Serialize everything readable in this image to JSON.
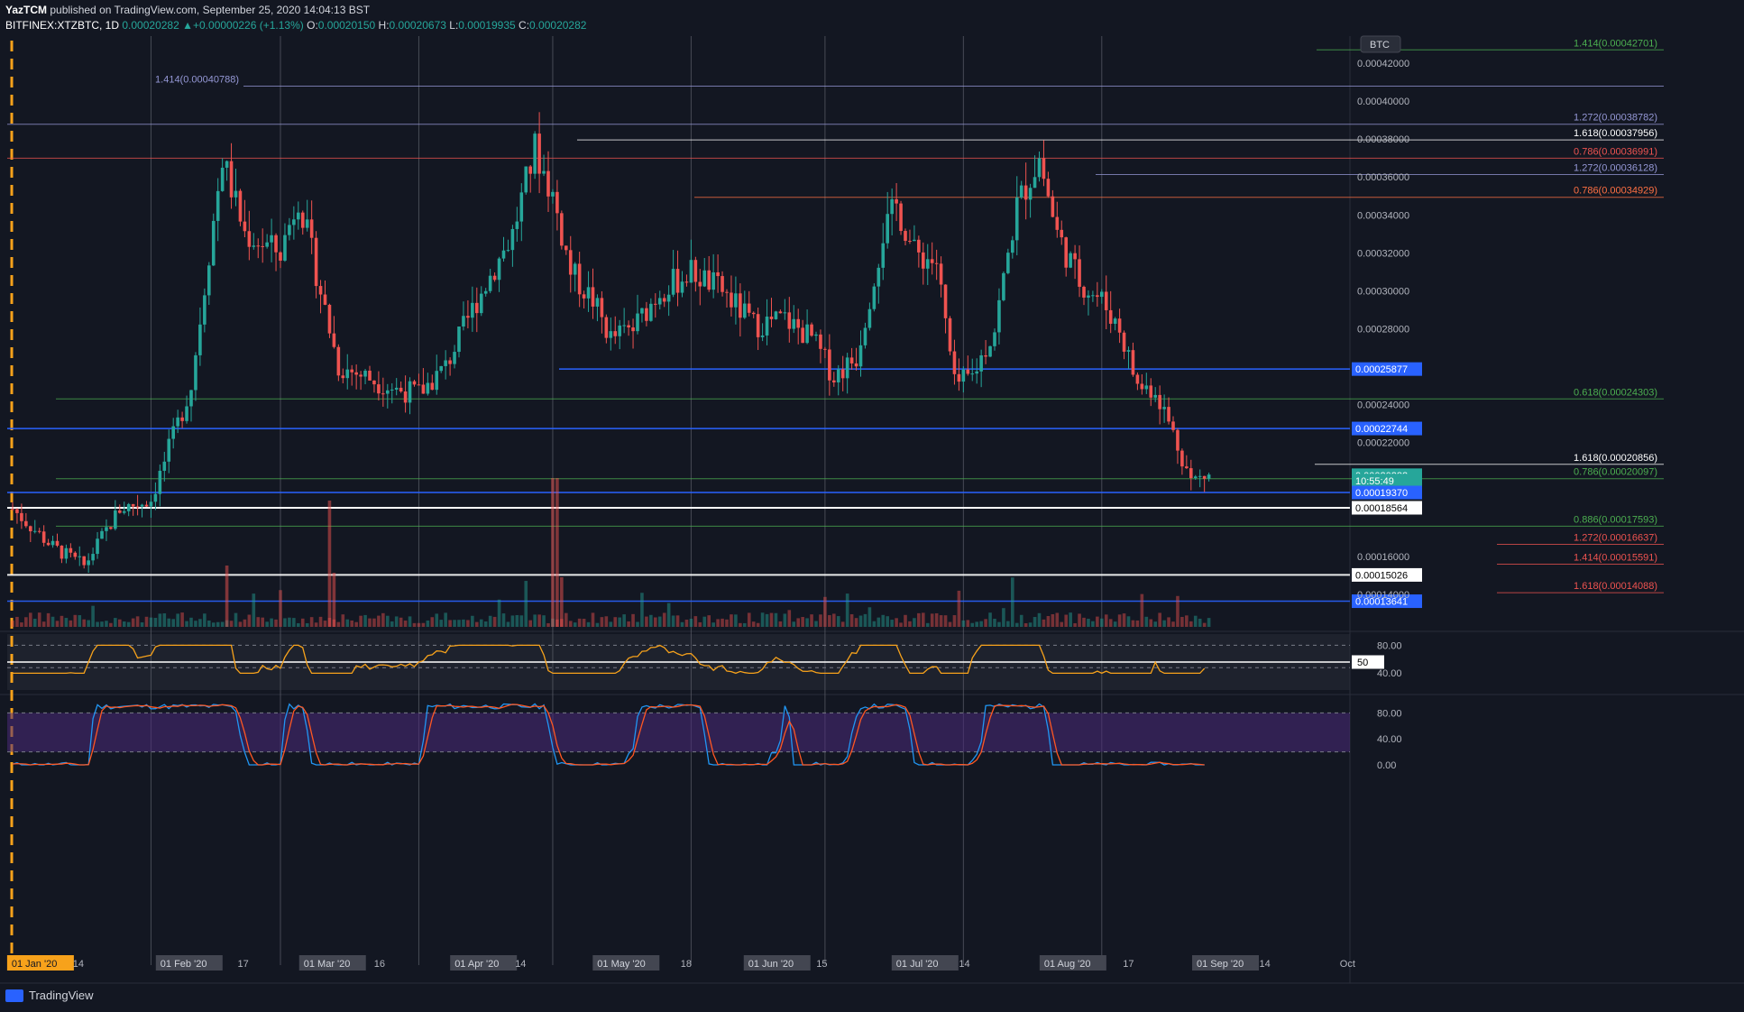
{
  "header": {
    "author": "YazTCM",
    "published_text": "published on TradingView.com, September 25, 2020 14:04:13 BST",
    "symbol": "BITFINEX:XTZBTC, 1D",
    "last": "0.00020282",
    "change": "+0.00000226 (+1.13%)",
    "open_label": "O:",
    "open": "0.00020150",
    "high_label": "H:",
    "high": "0.00020673",
    "low_label": "L:",
    "low": "0.00019935",
    "close_label": "C:",
    "close": "0.00020282"
  },
  "brand": {
    "label": "TradingView"
  },
  "colors": {
    "background": "#131722",
    "up": "#26a69a",
    "down": "#ef5350",
    "rsi_line": "#f7a21b",
    "stoch_k": "#2196f3",
    "stoch_d": "#ff5722",
    "stoch_band": "#4a2a7a"
  },
  "chart_data": {
    "type": "candlestick",
    "currency": "BTC",
    "price_axis_labels": [
      "0.00042000",
      "0.00040000",
      "0.00038000",
      "0.00036000",
      "0.00034000",
      "0.00032000",
      "0.00030000",
      "0.00028000",
      "0.00024000",
      "0.00022000",
      "0.00016000",
      "0.00014000"
    ],
    "x_axis_labels": [
      {
        "text": "01 Jan '20",
        "highlight": "orange"
      },
      {
        "text": "14",
        "highlight": "none"
      },
      {
        "text": "01 Feb '20",
        "highlight": "grey"
      },
      {
        "text": "17",
        "highlight": "none"
      },
      {
        "text": "01 Mar '20",
        "highlight": "grey"
      },
      {
        "text": "16",
        "highlight": "none"
      },
      {
        "text": "01 Apr '20",
        "highlight": "grey"
      },
      {
        "text": "14",
        "highlight": "none"
      },
      {
        "text": "01 May '20",
        "highlight": "grey"
      },
      {
        "text": "18",
        "highlight": "none"
      },
      {
        "text": "01 Jun '20",
        "highlight": "grey"
      },
      {
        "text": "15",
        "highlight": "none"
      },
      {
        "text": "01 Jul '20",
        "highlight": "grey"
      },
      {
        "text": "14",
        "highlight": "none"
      },
      {
        "text": "01 Aug '20",
        "highlight": "grey"
      },
      {
        "text": "17",
        "highlight": "none"
      },
      {
        "text": "01 Sep '20",
        "highlight": "grey"
      },
      {
        "text": "14",
        "highlight": "none"
      },
      {
        "text": "Oct",
        "highlight": "none"
      }
    ],
    "close_path": [
      [
        "2020-01-01",
        0.000185
      ],
      [
        "2020-01-10",
        0.000165
      ],
      [
        "2020-01-17",
        0.000155
      ],
      [
        "2020-01-25",
        0.000185
      ],
      [
        "2020-02-01",
        0.00019
      ],
      [
        "2020-02-10",
        0.00025
      ],
      [
        "2020-02-14",
        0.00032
      ],
      [
        "2020-02-17",
        0.00037
      ],
      [
        "2020-02-22",
        0.00033
      ],
      [
        "2020-03-01",
        0.00032
      ],
      [
        "2020-03-05",
        0.00035
      ],
      [
        "2020-03-10",
        0.0003
      ],
      [
        "2020-03-14",
        0.00026
      ],
      [
        "2020-03-20",
        0.000255
      ],
      [
        "2020-03-27",
        0.000248
      ],
      [
        "2020-04-01",
        0.000246
      ],
      [
        "2020-04-07",
        0.00026
      ],
      [
        "2020-04-14",
        0.000295
      ],
      [
        "2020-04-22",
        0.00033
      ],
      [
        "2020-04-27",
        0.000375
      ],
      [
        "2020-05-01",
        0.00035
      ],
      [
        "2020-05-05",
        0.00031
      ],
      [
        "2020-05-10",
        0.000295
      ],
      [
        "2020-05-14",
        0.000275
      ],
      [
        "2020-05-19",
        0.00028
      ],
      [
        "2020-05-25",
        0.0003
      ],
      [
        "2020-06-01",
        0.00031
      ],
      [
        "2020-06-08",
        0.0003
      ],
      [
        "2020-06-15",
        0.000282
      ],
      [
        "2020-06-22",
        0.000285
      ],
      [
        "2020-06-28",
        0.000275
      ],
      [
        "2020-07-03",
        0.000255
      ],
      [
        "2020-07-08",
        0.000265
      ],
      [
        "2020-07-14",
        0.00033
      ],
      [
        "2020-07-17",
        0.000345
      ],
      [
        "2020-07-21",
        0.00032
      ],
      [
        "2020-07-26",
        0.000315
      ],
      [
        "2020-07-30",
        0.00025
      ],
      [
        "2020-08-03",
        0.000255
      ],
      [
        "2020-08-08",
        0.00028
      ],
      [
        "2020-08-13",
        0.000345
      ],
      [
        "2020-08-18",
        0.00037
      ],
      [
        "2020-08-22",
        0.00033
      ],
      [
        "2020-08-27",
        0.000305
      ],
      [
        "2020-09-01",
        0.000295
      ],
      [
        "2020-09-05",
        0.00028
      ],
      [
        "2020-09-09",
        0.00025
      ],
      [
        "2020-09-13",
        0.000248
      ],
      [
        "2020-09-17",
        0.000225
      ],
      [
        "2020-09-21",
        0.0002
      ],
      [
        "2020-09-25",
        0.00020282
      ]
    ],
    "horizontal_levels": [
      {
        "label": "1.414(0.00042701)",
        "price": 0.00042701,
        "color": "#4caf50"
      },
      {
        "label": "1.414(0.00040788)",
        "price": 0.00040788,
        "color": "#9598d6"
      },
      {
        "label": "1.272(0.00038782)",
        "price": 0.00038782,
        "color": "#9598d6"
      },
      {
        "label": "1.618(0.00037956)",
        "price": 0.00037956,
        "color": "#ffffff"
      },
      {
        "label": "0.786(0.00036991)",
        "price": 0.00036991,
        "color": "#ef5350"
      },
      {
        "label": "1.272(0.00036128)",
        "price": 0.00036128,
        "color": "#9598d6"
      },
      {
        "label": "0.786(0.00034929)",
        "price": 0.00034929,
        "color": "#ff7043"
      },
      {
        "label": "0.618(0.00024303)",
        "price": 0.00024303,
        "color": "#4caf50"
      },
      {
        "label": "1.618(0.00020856)",
        "price": 0.00020856,
        "color": "#ffffff"
      },
      {
        "label": "0.786(0.00020097)",
        "price": 0.00020097,
        "color": "#4caf50"
      },
      {
        "label": "0.886(0.00017593)",
        "price": 0.00017593,
        "color": "#4caf50"
      },
      {
        "label": "1.272(0.00016637)",
        "price": 0.00016637,
        "color": "#ef5350"
      },
      {
        "label": "1.414(0.00015591)",
        "price": 0.00015591,
        "color": "#ef5350"
      },
      {
        "label": "1.618(0.00014088)",
        "price": 0.00014088,
        "color": "#ef5350"
      }
    ],
    "price_badges": [
      {
        "text": "0.00025877",
        "price": 0.00025877,
        "bg": "#2962ff"
      },
      {
        "text": "0.00022744",
        "price": 0.00022744,
        "bg": "#2962ff"
      },
      {
        "text": "0.00020282",
        "price": 0.00020282,
        "bg": "#26a69a"
      },
      {
        "text": "10:55:49",
        "price": 0.0002,
        "bg": "#26a69a"
      },
      {
        "text": "0.00019370",
        "price": 0.0001937,
        "bg": "#2962ff"
      },
      {
        "text": "0.00018564",
        "price": 0.00018564,
        "bg": "#ffffff"
      },
      {
        "text": "0.00015026",
        "price": 0.00015026,
        "bg": "#ffffff"
      },
      {
        "text": "0.00013641",
        "price": 0.00013641,
        "bg": "#2962ff"
      }
    ],
    "rsi": {
      "levels": [
        80,
        50,
        40
      ],
      "labels": [
        "80.00",
        "50",
        "40.00"
      ],
      "ylim": [
        0,
        100
      ]
    },
    "stoch": {
      "levels": [
        80,
        40,
        0
      ],
      "labels": [
        "80.00",
        "40.00",
        "0.00"
      ],
      "ylim": [
        0,
        100
      ]
    }
  }
}
